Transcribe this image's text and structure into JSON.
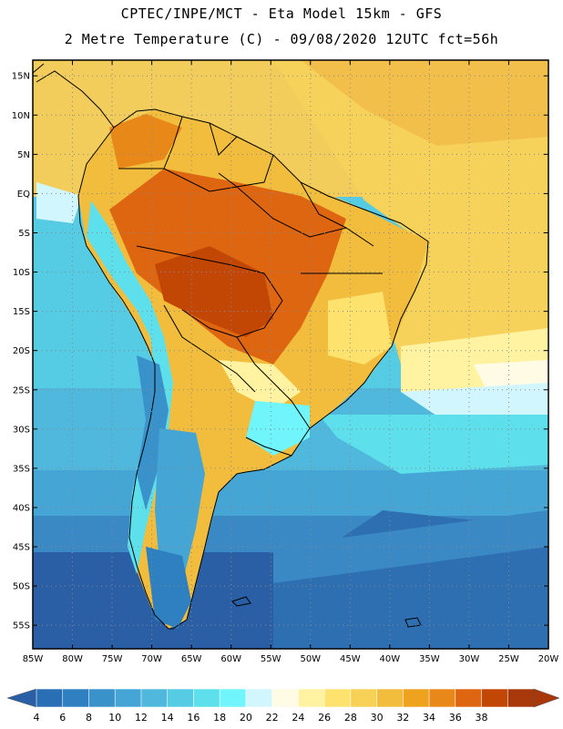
{
  "header": {
    "line1": "CPTEC/INPE/MCT -  Eta Model 15km - GFS",
    "line2": "2 Metre Temperature (C) - 09/08/2020 12UTC fct=56h"
  },
  "axes": {
    "lat_labels": [
      "15N",
      "10N",
      "5N",
      "EQ",
      "5S",
      "10S",
      "15S",
      "20S",
      "25S",
      "30S",
      "35S",
      "40S",
      "45S",
      "50S",
      "55S"
    ],
    "lon_labels": [
      "85W",
      "80W",
      "75W",
      "70W",
      "65W",
      "60W",
      "55W",
      "50W",
      "45W",
      "40W",
      "35W",
      "30W",
      "25W",
      "20W"
    ],
    "lat_range": [
      17,
      -58
    ],
    "lon_range": [
      -85,
      -20
    ]
  },
  "colorbar": {
    "labels": [
      "4",
      "6",
      "8",
      "10",
      "12",
      "14",
      "16",
      "18",
      "20",
      "22",
      "24",
      "26",
      "28",
      "30",
      "32",
      "34",
      "36",
      "38"
    ],
    "colors": [
      "#2a6fb5",
      "#2e80c0",
      "#3a92cb",
      "#45a5d4",
      "#50b8dc",
      "#56cbe4",
      "#5ee0ec",
      "#6ff5fb",
      "#d2f6fd",
      "#fffbe5",
      "#fff2a0",
      "#fde26d",
      "#f7d155",
      "#f2bd3c",
      "#eea21e",
      "#e88818",
      "#df6610",
      "#c24704",
      "#a8380a"
    ],
    "under_color": "#2a5fa6",
    "over_color": "#a8380a"
  }
}
